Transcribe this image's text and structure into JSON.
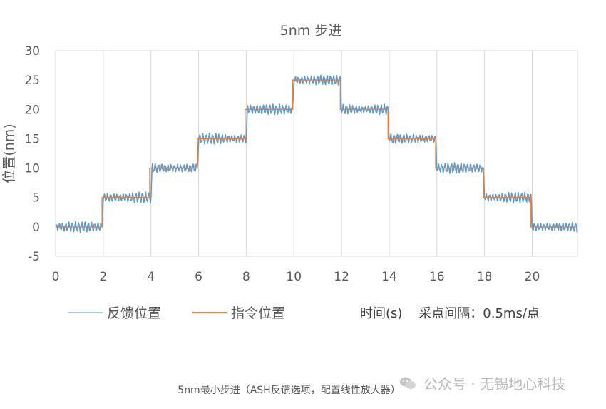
{
  "chart_data": {
    "type": "line",
    "title": "5nm 步进",
    "xlabel": "",
    "ylabel": "位置(nm)",
    "xlim": [
      0,
      21.9
    ],
    "ylim": [
      -5,
      30
    ],
    "xticks": [
      "0",
      "2",
      "4",
      "6",
      "8",
      "10",
      "12",
      "14",
      "16",
      "18",
      "20"
    ],
    "yticks": [
      "-5",
      "0",
      "5",
      "10",
      "15",
      "20",
      "25",
      "30"
    ],
    "grid": "vertical",
    "legend_position": "bottom-left",
    "note": "时间(s)    采点间隔：0.5ms/点",
    "series": [
      {
        "name": "反馈位置",
        "color": "#5b9bd5",
        "style": "noisy around command, amplitude ~0.8nm",
        "x": [
          0,
          1.95,
          2.0,
          4.0,
          4.05,
          5.95,
          6.0,
          8.0,
          8.05,
          9.95,
          10.0,
          11.95,
          12.0,
          13.95,
          14.0,
          15.95,
          16.0,
          17.95,
          18.0,
          19.95,
          20.0,
          21.9
        ],
        "y": [
          0,
          0,
          5,
          5,
          10,
          10,
          15,
          15,
          20,
          20,
          25,
          25,
          20,
          20,
          15,
          15,
          10,
          10,
          5,
          5,
          0,
          0
        ]
      },
      {
        "name": "指令位置",
        "color": "#ed7d31",
        "steps": [
          {
            "from": 0,
            "to": 1.95,
            "value": 0
          },
          {
            "from": 1.95,
            "to": 3.95,
            "value": 5
          },
          {
            "from": 3.95,
            "to": 5.95,
            "value": 10
          },
          {
            "from": 5.95,
            "to": 7.95,
            "value": 15
          },
          {
            "from": 7.95,
            "to": 9.95,
            "value": 20
          },
          {
            "from": 9.95,
            "to": 11.95,
            "value": 25
          },
          {
            "from": 11.95,
            "to": 13.95,
            "value": 20
          },
          {
            "from": 13.95,
            "to": 15.95,
            "value": 15
          },
          {
            "from": 15.95,
            "to": 17.95,
            "value": 10
          },
          {
            "from": 17.95,
            "to": 19.95,
            "value": 5
          },
          {
            "from": 19.95,
            "to": 21.9,
            "value": 0
          }
        ]
      }
    ]
  },
  "caption": "5nm最小步进（ASH反馈选项，配置线性放大器）",
  "watermark": {
    "text": "公众号 · 无锡地心科技",
    "icon": "wechat-icon",
    "color": "#b8b8b8"
  }
}
